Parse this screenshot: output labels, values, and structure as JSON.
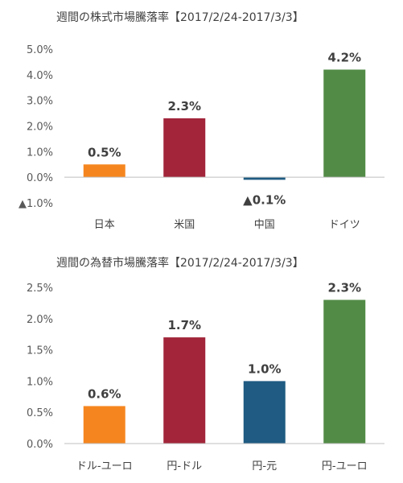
{
  "colors": {
    "orange": "#F5861F",
    "crimson": "#A2253A",
    "navy": "#1F5B82",
    "green": "#528B46",
    "negative": "#E31E24",
    "grid": "#D9D9D9",
    "axis": "#BFBFBF"
  },
  "chart_data": [
    {
      "type": "bar",
      "title": "週間の株式市場騰落率【2017/2/24-2017/3/3】",
      "categories": [
        "日本",
        "米国",
        "中国",
        "ドイツ"
      ],
      "values": [
        0.5,
        2.3,
        -0.1,
        4.2
      ],
      "value_labels": [
        "0.5%",
        "2.3%",
        "▲0.1%",
        "4.2%"
      ],
      "bar_colors": [
        "orange",
        "crimson",
        "navy",
        "green"
      ],
      "ylim": [
        -1.0,
        5.0
      ],
      "yticks": [
        5.0,
        4.0,
        3.0,
        2.0,
        1.0,
        0.0,
        -1.0
      ],
      "ytick_labels": [
        "5.0%",
        "4.0%",
        "3.0%",
        "2.0%",
        "1.0%",
        "0.0%",
        "▲1.0%"
      ],
      "grid": false,
      "legend": "none"
    },
    {
      "type": "bar",
      "title": "週間の為替市場騰落率【2017/2/24-2017/3/3】",
      "categories": [
        "ドル-ユーロ",
        "円-ドル",
        "円-元",
        "円-ユーロ"
      ],
      "values": [
        0.6,
        1.7,
        1.0,
        2.3
      ],
      "value_labels": [
        "0.6%",
        "1.7%",
        "1.0%",
        "2.3%"
      ],
      "bar_colors": [
        "orange",
        "crimson",
        "navy",
        "green"
      ],
      "ylim": [
        0.0,
        2.5
      ],
      "yticks": [
        2.5,
        2.0,
        1.5,
        1.0,
        0.5,
        0.0
      ],
      "ytick_labels": [
        "2.5%",
        "2.0%",
        "1.5%",
        "1.0%",
        "0.5%",
        "0.0%"
      ],
      "grid": false,
      "legend": "none"
    }
  ]
}
